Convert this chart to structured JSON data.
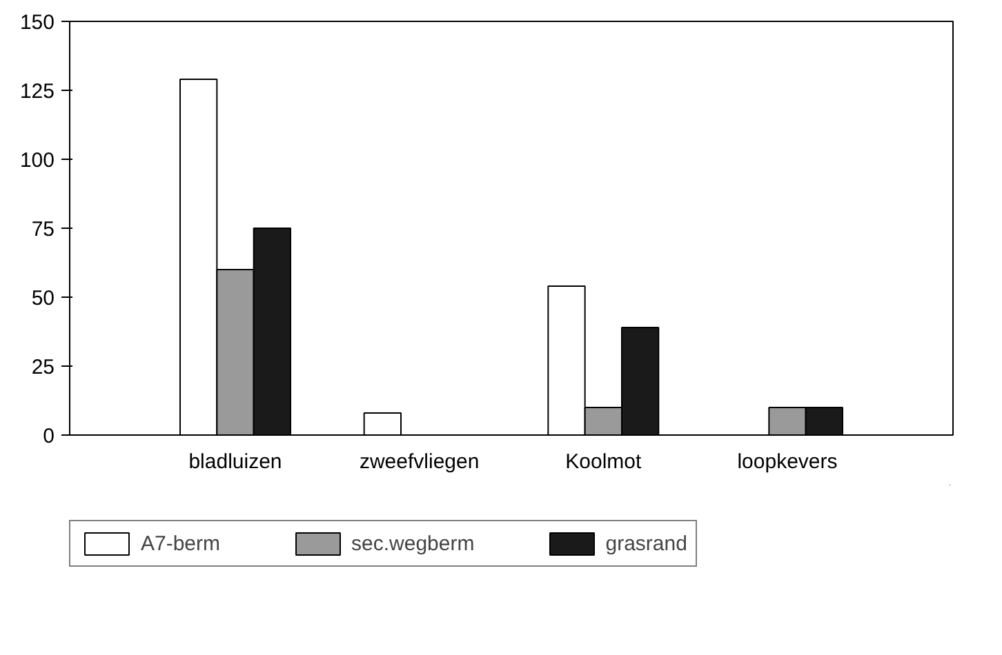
{
  "chart_data": {
    "type": "bar",
    "categories": [
      "bladluizen",
      "zweefvliegen",
      "Koolmot",
      "loopkevers"
    ],
    "series": [
      {
        "name": "A7-berm",
        "color": "#ffffff",
        "values": [
          129,
          8,
          54,
          null
        ]
      },
      {
        "name": "sec.wegberm",
        "color": "#9a9a9a",
        "values": [
          60,
          null,
          10,
          10
        ]
      },
      {
        "name": "grasrand",
        "color": "#1a1a1a",
        "values": [
          75,
          null,
          39,
          10
        ]
      }
    ],
    "ylim": [
      0,
      150
    ],
    "yticks": [
      0,
      25,
      50,
      75,
      100,
      125,
      150
    ],
    "grid": false,
    "legend": "bottom"
  }
}
